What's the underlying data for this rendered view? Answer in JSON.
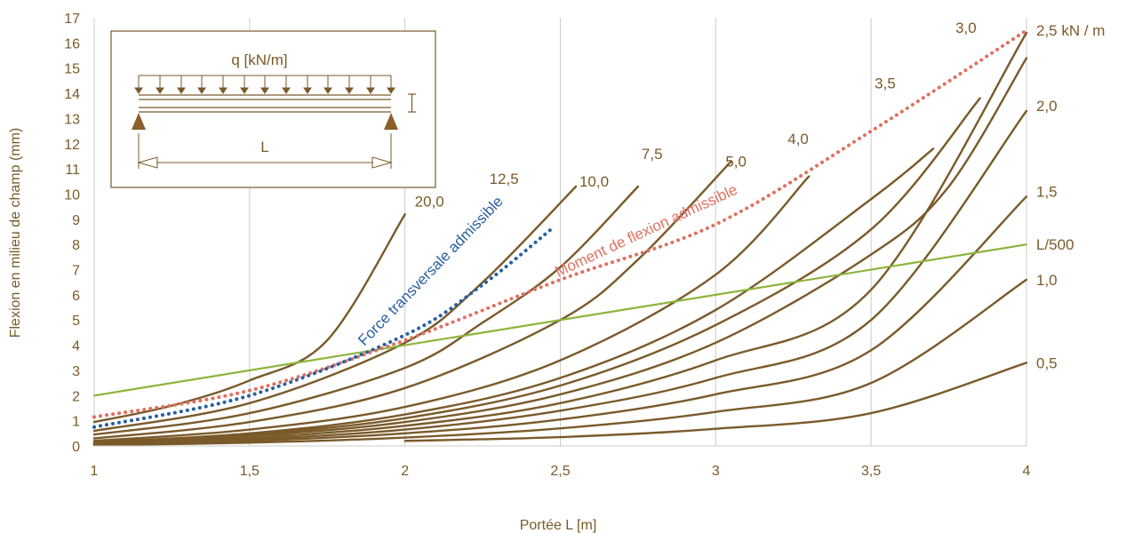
{
  "chart_data": {
    "type": "line",
    "title": "",
    "xlabel": "Portée L [m]",
    "ylabel": "Flexion en milieu de champ (mm)",
    "xlim": [
      1,
      4
    ],
    "ylim": [
      0,
      17
    ],
    "x_ticks": [
      "1",
      "1,5",
      "2",
      "2,5",
      "3",
      "3,5",
      "4"
    ],
    "y_ticks": [
      "0",
      "1",
      "2",
      "3",
      "4",
      "5",
      "6",
      "7",
      "8",
      "9",
      "10",
      "11",
      "12",
      "13",
      "14",
      "15",
      "16",
      "17"
    ],
    "grid": "vertical",
    "series": [
      {
        "name": "20,0",
        "color": "#7a5a2a",
        "points": [
          [
            1.0,
            0.95
          ],
          [
            1.25,
            1.6
          ],
          [
            1.5,
            2.6
          ],
          [
            1.75,
            4.2
          ],
          [
            2.0,
            9.2
          ]
        ]
      },
      {
        "name": "12,5",
        "color": "#7a5a2a",
        "points": [
          [
            1.0,
            0.6
          ],
          [
            1.5,
            1.7
          ],
          [
            2.0,
            4.1
          ],
          [
            2.25,
            6.5
          ],
          [
            2.55,
            10.3
          ]
        ]
      },
      {
        "name": "10,0",
        "color": "#7a5a2a",
        "points": [
          [
            1.0,
            0.45
          ],
          [
            1.5,
            1.3
          ],
          [
            2.0,
            3.1
          ],
          [
            2.25,
            4.9
          ],
          [
            2.5,
            7.1
          ],
          [
            2.75,
            10.3
          ]
        ]
      },
      {
        "name": "7,5",
        "color": "#7a5a2a",
        "points": [
          [
            1.0,
            0.3
          ],
          [
            1.5,
            0.95
          ],
          [
            2.0,
            2.3
          ],
          [
            2.5,
            5.0
          ],
          [
            2.75,
            7.4
          ],
          [
            3.05,
            11.3
          ]
        ]
      },
      {
        "name": "5,0",
        "color": "#7a5a2a",
        "points": [
          [
            1.0,
            0.2
          ],
          [
            1.5,
            0.65
          ],
          [
            2.0,
            1.55
          ],
          [
            2.5,
            3.4
          ],
          [
            3.0,
            6.8
          ],
          [
            3.3,
            10.7
          ]
        ]
      },
      {
        "name": "4,0",
        "color": "#7a5a2a",
        "points": [
          [
            1.0,
            0.15
          ],
          [
            1.5,
            0.5
          ],
          [
            2.0,
            1.25
          ],
          [
            2.5,
            2.7
          ],
          [
            3.0,
            5.4
          ],
          [
            3.5,
            9.8
          ],
          [
            3.7,
            11.8
          ]
        ]
      },
      {
        "name": "3,5",
        "color": "#7a5a2a",
        "points": [
          [
            1.0,
            0.12
          ],
          [
            1.5,
            0.45
          ],
          [
            2.0,
            1.1
          ],
          [
            2.5,
            2.4
          ],
          [
            3.0,
            4.8
          ],
          [
            3.5,
            8.6
          ],
          [
            3.85,
            13.8
          ]
        ]
      },
      {
        "name": "3,0",
        "color": "#7a5a2a",
        "points": [
          [
            1.0,
            0.1
          ],
          [
            1.5,
            0.4
          ],
          [
            2.0,
            0.95
          ],
          [
            2.5,
            2.05
          ],
          [
            3.0,
            4.1
          ],
          [
            3.5,
            7.6
          ],
          [
            3.75,
            10.3
          ],
          [
            4.0,
            15.4
          ]
        ]
      },
      {
        "name": "2,5 kN / m",
        "color": "#7a5a2a",
        "points": [
          [
            1.0,
            0.08
          ],
          [
            1.5,
            0.32
          ],
          [
            2.0,
            0.8
          ],
          [
            2.5,
            1.7
          ],
          [
            3.0,
            3.4
          ],
          [
            3.5,
            6.2
          ],
          [
            4.0,
            16.4
          ]
        ]
      },
      {
        "name": "2,0",
        "color": "#7a5a2a",
        "points": [
          [
            1.0,
            0.06
          ],
          [
            1.5,
            0.26
          ],
          [
            2.0,
            0.65
          ],
          [
            2.5,
            1.4
          ],
          [
            3.0,
            2.7
          ],
          [
            3.5,
            5.0
          ],
          [
            4.0,
            13.3
          ]
        ]
      },
      {
        "name": "1,5",
        "color": "#7a5a2a",
        "points": [
          [
            1.0,
            0.05
          ],
          [
            1.5,
            0.2
          ],
          [
            2.0,
            0.5
          ],
          [
            2.5,
            1.05
          ],
          [
            3.0,
            2.05
          ],
          [
            3.5,
            3.8
          ],
          [
            4.0,
            9.9
          ]
        ]
      },
      {
        "name": "1,0",
        "color": "#7a5a2a",
        "points": [
          [
            1.0,
            0.03
          ],
          [
            1.5,
            0.13
          ],
          [
            2.0,
            0.33
          ],
          [
            2.5,
            0.7
          ],
          [
            3.0,
            1.35
          ],
          [
            3.5,
            2.5
          ],
          [
            4.0,
            6.6
          ]
        ]
      },
      {
        "name": "0,5",
        "color": "#7a5a2a",
        "points": [
          [
            2.0,
            0.2
          ],
          [
            2.5,
            0.35
          ],
          [
            3.0,
            0.68
          ],
          [
            3.5,
            1.3
          ],
          [
            4.0,
            3.3
          ]
        ]
      },
      {
        "name": "L/500",
        "color": "#8db43c",
        "points": [
          [
            1.0,
            2.0
          ],
          [
            4.0,
            8.0
          ]
        ]
      },
      {
        "name": "Moment de flexion admissible",
        "color": "#e07060",
        "style": "dotted",
        "points": [
          [
            1.0,
            1.15
          ],
          [
            1.5,
            2.2
          ],
          [
            2.0,
            4.2
          ],
          [
            2.5,
            6.6
          ],
          [
            3.0,
            8.8
          ],
          [
            3.5,
            12.5
          ],
          [
            4.0,
            16.5
          ]
        ]
      },
      {
        "name": "Force transversale admissible",
        "color": "#2a5fa0",
        "style": "dotted",
        "points": [
          [
            1.0,
            0.75
          ],
          [
            1.5,
            2.0
          ],
          [
            2.0,
            4.4
          ],
          [
            2.25,
            6.4
          ],
          [
            2.48,
            8.7
          ]
        ]
      }
    ],
    "curve_labels": [
      {
        "text": "20,0",
        "x": 2.02,
        "y": 9.5
      },
      {
        "text": "12,5",
        "x": 2.26,
        "y": 10.4
      },
      {
        "text": "10,0",
        "x": 2.55,
        "y": 10.3
      },
      {
        "text": "7,5",
        "x": 2.75,
        "y": 11.4
      },
      {
        "text": "5,0",
        "x": 3.02,
        "y": 11.1
      },
      {
        "text": "4,0",
        "x": 3.22,
        "y": 12.0
      },
      {
        "text": "3,5",
        "x": 3.5,
        "y": 14.2
      },
      {
        "text": "3,0",
        "x": 3.76,
        "y": 16.4
      }
    ],
    "right_labels": [
      {
        "text": "2,5 kN / m",
        "y": 16.5
      },
      {
        "text": "2,0",
        "y": 13.5
      },
      {
        "text": "1,5",
        "y": 10.1
      },
      {
        "text": "L/500",
        "y": 8.0
      },
      {
        "text": "1,0",
        "y": 6.6
      },
      {
        "text": "0,5",
        "y": 3.3
      }
    ],
    "ref_labels": {
      "force": "Force transversale admissible",
      "moment": "Moment de flexion admissible"
    }
  },
  "inset": {
    "load_label": "q [kN/m]",
    "span_label": "L"
  },
  "colors": {
    "curve": "#7a5a2a",
    "limit": "#8db43c",
    "moment": "#e07060",
    "force": "#2a5fa0",
    "grid": "#cccccc",
    "text": "#7a5a2a"
  }
}
